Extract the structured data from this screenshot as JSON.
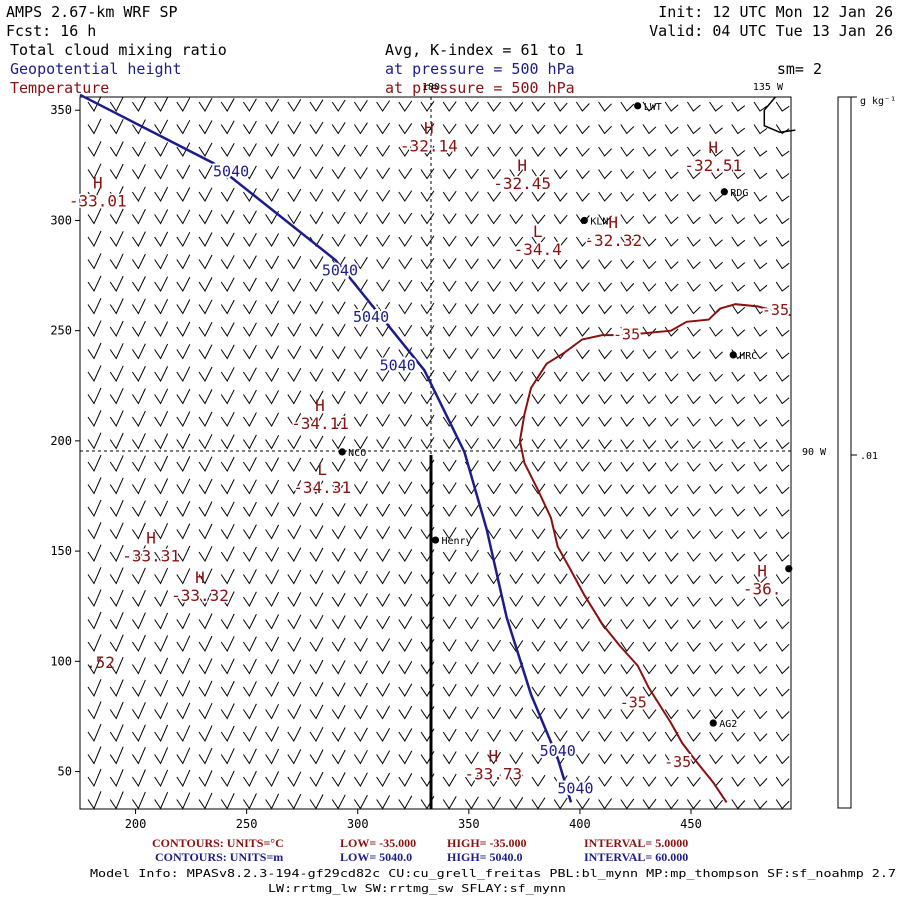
{
  "header": {
    "title": "AMPS 2.67-km WRF SP",
    "forecast": "Fcst:    16 h",
    "init": "Init: 12 UTC Mon 12 Jan 26",
    "valid": "Valid: 04 UTC Tue 13 Jan 26",
    "field1": "Total cloud mixing ratio",
    "field2": "Geopotential height",
    "field3": "Temperature",
    "avg_line": "Avg, K-index =  61 to   1",
    "pressure_line_1": "at pressure =  500 hPa",
    "pressure_line_2": "at pressure =  500 hPa",
    "smoothing": "sm= 2"
  },
  "colors": {
    "height": "#1c1c8c",
    "temperature": "#8b1010",
    "text_blue": "#1c1c8c",
    "text_red": "#8b1010",
    "black": "#000000"
  },
  "map": {
    "x_axis": {
      "min": 175,
      "max": 495,
      "ticks": [
        200,
        250,
        300,
        350,
        400,
        450
      ]
    },
    "y_axis": {
      "min": 33,
      "max": 356,
      "ticks": [
        50,
        100,
        150,
        200,
        250,
        300,
        350
      ]
    },
    "meridian_labels": {
      "top_180": "180",
      "top_135w": "135 W",
      "right_90w": "90 W"
    },
    "stations": [
      {
        "label": "LWT",
        "x": 426,
        "y": 352
      },
      {
        "label": "RDG",
        "x": 465,
        "y": 313
      },
      {
        "label": "KLN",
        "x": 402,
        "y": 300
      },
      {
        "label": "HRC",
        "x": 469,
        "y": 239
      },
      {
        "label": "NCO",
        "x": 293,
        "y": 195
      },
      {
        "label": "Henry",
        "x": 335,
        "y": 155
      },
      {
        "label": "AG2",
        "x": 460,
        "y": 72
      },
      {
        "label": "",
        "x": 494,
        "y": 142
      }
    ],
    "temperature_extrema": [
      {
        "kind": "H",
        "value": "-32.14",
        "x": 332,
        "y": 335
      },
      {
        "kind": "H",
        "value": "-32.51",
        "x": 460,
        "y": 326
      },
      {
        "kind": "H",
        "value": "-32.45",
        "x": 374,
        "y": 318
      },
      {
        "kind": "H",
        "value": "-33.01",
        "x": 183,
        "y": 310
      },
      {
        "kind": "H",
        "value": "-32.32",
        "x": 415,
        "y": 292
      },
      {
        "kind": "L",
        "value": "-34.4",
        "x": 381,
        "y": 288
      },
      {
        "kind": "H",
        "value": "-34.11",
        "x": 283,
        "y": 209
      },
      {
        "kind": "L",
        "value": "-34.31",
        "x": 284,
        "y": 180
      },
      {
        "kind": "H",
        "value": "-33.31",
        "x": 207,
        "y": 149
      },
      {
        "kind": "H",
        "value": "-33.32",
        "x": 229,
        "y": 131
      },
      {
        "kind": "H",
        "value": "-36.",
        "x": 482,
        "y": 134
      },
      {
        "kind": "H",
        "value": "-33.73",
        "x": 361,
        "y": 50
      }
    ],
    "edge_label": ".52",
    "height_contour": {
      "level": "5040",
      "points": [
        [
          175,
          357
        ],
        [
          235,
          326
        ],
        [
          290,
          282
        ],
        [
          330,
          232
        ],
        [
          348,
          195
        ],
        [
          358,
          160
        ],
        [
          367,
          120
        ],
        [
          378,
          85
        ],
        [
          390,
          56
        ],
        [
          396,
          36
        ]
      ],
      "labels": [
        {
          "text": "5040",
          "x": 243,
          "y": 320
        },
        {
          "text": "5040",
          "x": 292,
          "y": 275
        },
        {
          "text": "5040",
          "x": 306,
          "y": 254
        },
        {
          "text": "5040",
          "x": 318,
          "y": 232
        },
        {
          "text": "5040",
          "x": 390,
          "y": 57
        },
        {
          "text": "5040",
          "x": 398,
          "y": 40
        }
      ]
    },
    "temperature_contour": {
      "level": "-35",
      "points": [
        [
          495,
          257
        ],
        [
          480,
          261
        ],
        [
          470,
          262
        ],
        [
          463,
          260
        ],
        [
          458,
          255
        ],
        [
          448,
          254
        ],
        [
          441,
          250
        ],
        [
          420,
          248
        ],
        [
          410,
          248
        ],
        [
          401,
          246
        ],
        [
          393,
          240
        ],
        [
          385,
          235
        ],
        [
          378,
          224
        ],
        [
          375,
          212
        ],
        [
          373,
          200
        ],
        [
          375,
          190
        ],
        [
          381,
          178
        ],
        [
          387,
          165
        ],
        [
          390,
          152
        ],
        [
          395,
          143
        ],
        [
          402,
          130
        ],
        [
          410,
          117
        ],
        [
          418,
          107
        ],
        [
          426,
          98
        ],
        [
          431,
          88
        ],
        [
          436,
          80
        ],
        [
          441,
          72
        ],
        [
          446,
          63
        ],
        [
          452,
          55
        ],
        [
          460,
          45
        ],
        [
          466,
          36
        ]
      ],
      "labels": [
        {
          "text": "-35",
          "x": 488,
          "y": 257
        },
        {
          "text": "-35",
          "x": 421,
          "y": 246
        },
        {
          "text": "-35",
          "x": 424,
          "y": 79
        },
        {
          "text": "-35",
          "x": 444,
          "y": 52
        }
      ]
    },
    "coastline": [
      [
        488,
        356
      ],
      [
        483,
        350
      ],
      [
        483,
        343
      ],
      [
        490,
        340
      ],
      [
        497,
        341
      ]
    ]
  },
  "colorbar": {
    "units": "g kg⁻¹",
    "tick_label": ".01"
  },
  "footer": {
    "red_units": "CONTOURS:  UNITS=°C",
    "red_low": "LOW=  -35.000",
    "red_high": "HIGH=  -35.000",
    "red_interval": "INTERVAL=    5.0000",
    "blue_units": "CONTOURS:  UNITS=m",
    "blue_low": "LOW=   5040.0",
    "blue_high": "HIGH=   5040.0",
    "blue_interval": "INTERVAL=    60.000",
    "model_info": "Model Info: MPASv8.2.3-194-gf29cd82c CU:cu_grell_freitas PBL:bl_mynn MP:mp_thompson SF:sf_noahmp 2.7",
    "model_info_2": "LW:rrtmg_lw SW:rrtmg_sw SFLAY:sf_mynn"
  }
}
